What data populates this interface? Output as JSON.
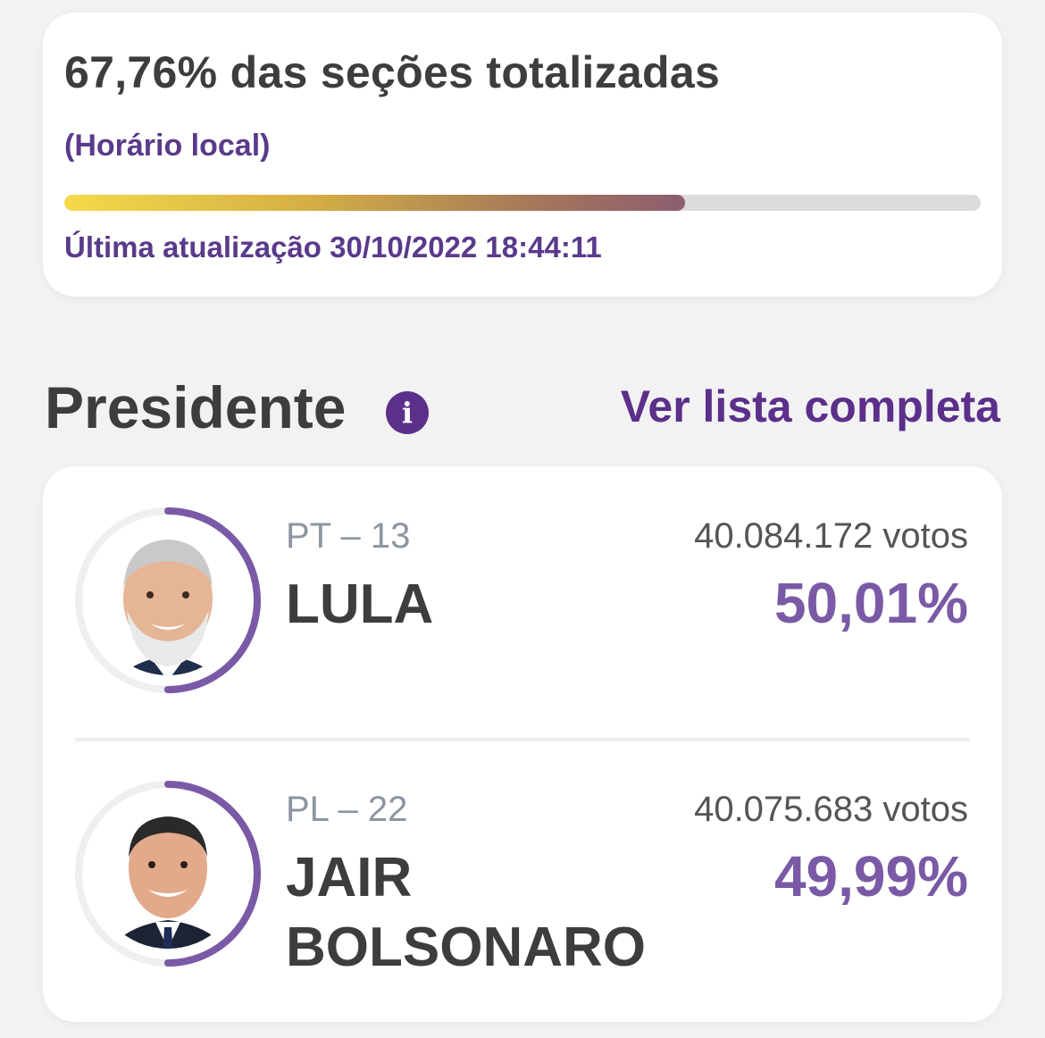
{
  "status": {
    "title": "67,76% das seções totalizadas",
    "local_time_label": "(Horário local)",
    "progress_fraction": 0.6776,
    "last_update": "Última atualização 30/10/2022 18:44:11"
  },
  "section": {
    "title": "Presidente",
    "info_glyph": "i",
    "see_all_label": "Ver lista completa"
  },
  "candidates": [
    {
      "party": "PT – 13",
      "name": "LULA",
      "votes": "40.084.172 votos",
      "percent": "50,01%",
      "percent_value": 50.01
    },
    {
      "party": "PL – 22",
      "name": "JAIR BOLSONARO",
      "votes": "40.075.683 votos",
      "percent": "49,99%",
      "percent_value": 49.99
    }
  ],
  "colors": {
    "accent": "#5b2f8a",
    "percent": "#7a5aa6",
    "ring": "#7a5aa6",
    "ring_track": "#efefef"
  },
  "icons": {
    "info": "info-icon"
  }
}
